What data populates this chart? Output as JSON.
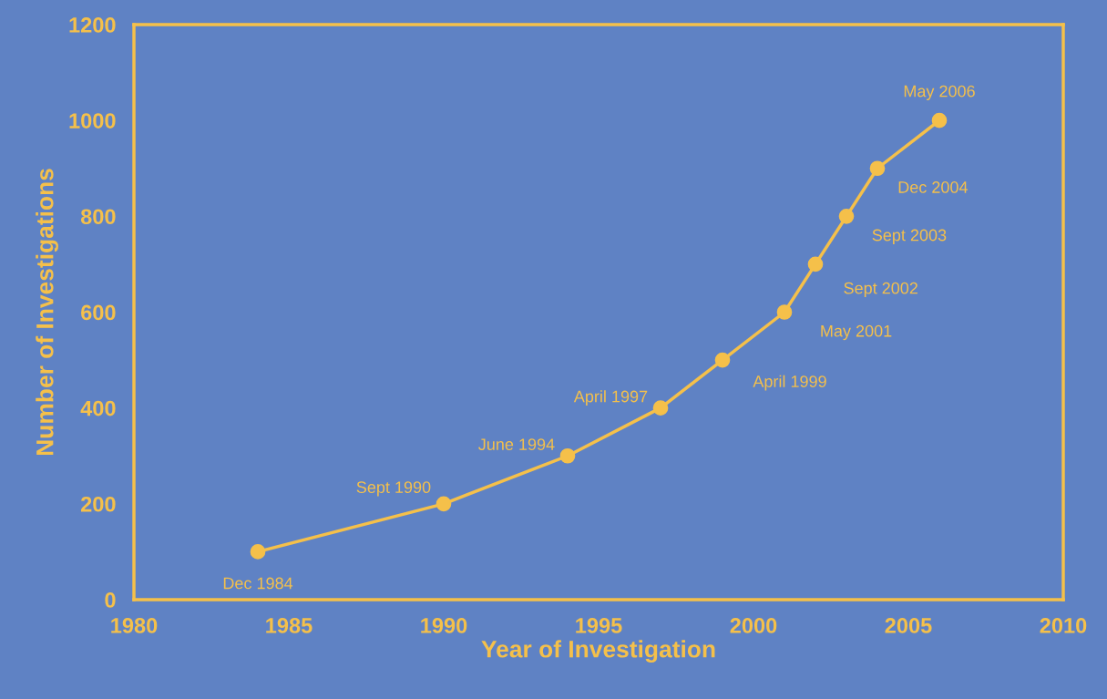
{
  "chart_data": {
    "type": "line",
    "xlabel": "Year of Investigation",
    "ylabel": "Number of Investigations",
    "x": [
      1984,
      1990,
      1994,
      1997,
      1999,
      2001,
      2002,
      2003,
      2004,
      2006
    ],
    "series": [
      {
        "color": "#f5c04a",
        "values": [
          100,
          200,
          300,
          400,
          500,
          600,
          700,
          800,
          900,
          1000
        ]
      }
    ],
    "marker": "circle",
    "line_style": "solid",
    "grid": false,
    "legend": false,
    "xlim": [
      1980,
      2010
    ],
    "xticks": [
      1980,
      1985,
      1990,
      1995,
      2000,
      2005,
      2010
    ],
    "ylim": [
      0,
      1200
    ],
    "yticks": [
      0,
      200,
      400,
      600,
      800,
      1000,
      1200
    ],
    "annotations": [
      {
        "text": "Dec 1984",
        "x": 1984,
        "y": 100
      },
      {
        "text": "Sept 1990",
        "x": 1990,
        "y": 200
      },
      {
        "text": "June 1994",
        "x": 1994,
        "y": 300
      },
      {
        "text": "April 1997",
        "x": 1997,
        "y": 400
      },
      {
        "text": "April 1999",
        "x": 1999,
        "y": 500
      },
      {
        "text": "May 2001",
        "x": 2001,
        "y": 600
      },
      {
        "text": "Sept 2002",
        "x": 2002,
        "y": 700
      },
      {
        "text": "Sept 2003",
        "x": 2003,
        "y": 800
      },
      {
        "text": "Dec 2004",
        "x": 2004,
        "y": 900
      },
      {
        "text": "May 2006",
        "x": 2006,
        "y": 1000
      }
    ]
  }
}
